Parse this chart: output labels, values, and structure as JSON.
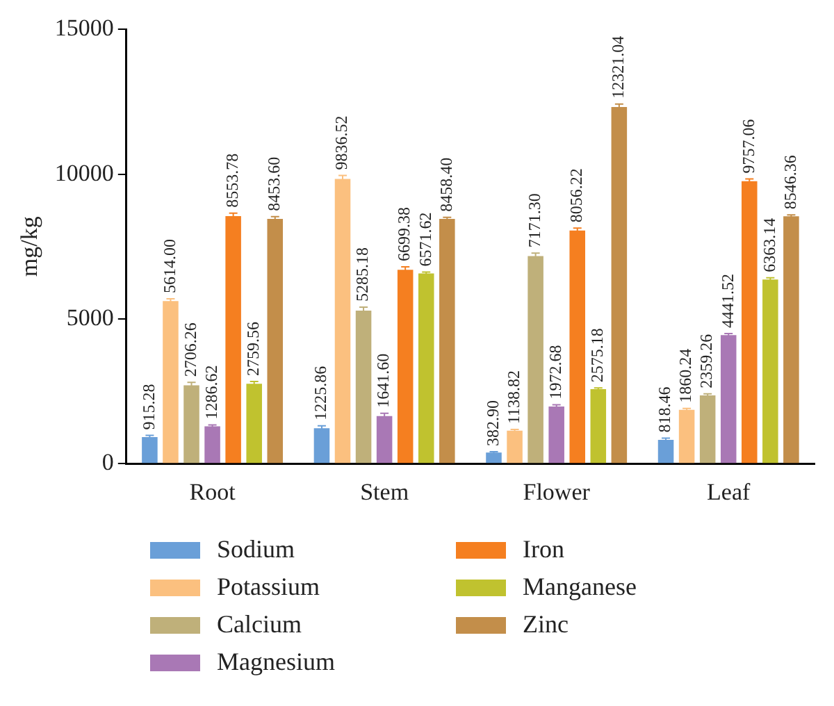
{
  "chart_data": {
    "type": "bar",
    "ylabel": "mg/kg",
    "categories": [
      "Root",
      "Stem",
      "Flower",
      "Leaf"
    ],
    "ylim": [
      0,
      15000
    ],
    "yticks": [
      0,
      5000,
      10000,
      15000
    ],
    "grid": false,
    "legend": "bottom",
    "series": [
      {
        "name": "Sodium",
        "color": "#6a9fd8",
        "values": [
          915.28,
          1225.86,
          382.9,
          818.46
        ],
        "value_labels": [
          "915.28",
          "1225.86",
          "382.90",
          "818.46"
        ],
        "errors": [
          60,
          80,
          30,
          60
        ]
      },
      {
        "name": "Potassium",
        "color": "#fbc07f",
        "values": [
          5614.0,
          9836.52,
          1138.82,
          1860.24
        ],
        "value_labels": [
          "5614.00",
          "9836.52",
          "1138.82",
          "1860.24"
        ],
        "errors": [
          80,
          120,
          40,
          50
        ]
      },
      {
        "name": "Calcium",
        "color": "#bfb07a",
        "values": [
          2706.26,
          5285.18,
          7171.3,
          2359.26
        ],
        "value_labels": [
          "2706.26",
          "5285.18",
          "7171.30",
          "2359.26"
        ],
        "errors": [
          100,
          120,
          100,
          50
        ]
      },
      {
        "name": "Magnesium",
        "color": "#a978b5",
        "values": [
          1286.62,
          1641.6,
          1972.68,
          4441.52
        ],
        "value_labels": [
          "1286.62",
          "1641.60",
          "1972.68",
          "4441.52"
        ],
        "errors": [
          50,
          100,
          60,
          50
        ]
      },
      {
        "name": "Iron",
        "color": "#f57f20",
        "values": [
          8553.78,
          6699.38,
          8056.22,
          9757.06
        ],
        "value_labels": [
          "8553.78",
          "6699.38",
          "8056.22",
          "9757.06"
        ],
        "errors": [
          100,
          100,
          80,
          80
        ]
      },
      {
        "name": "Manganese",
        "color": "#c0c22f",
        "values": [
          2759.56,
          6571.62,
          2575.18,
          6363.14
        ],
        "value_labels": [
          "2759.56",
          "6571.62",
          "2575.18",
          "6363.14"
        ],
        "errors": [
          80,
          50,
          40,
          60
        ]
      },
      {
        "name": "Zinc",
        "color": "#c38e4a",
        "values": [
          8453.6,
          8458.4,
          12321.04,
          8546.36
        ],
        "value_labels": [
          "8453.60",
          "8458.40",
          "12321.04",
          "8546.36"
        ],
        "errors": [
          80,
          50,
          100,
          50
        ]
      }
    ]
  }
}
